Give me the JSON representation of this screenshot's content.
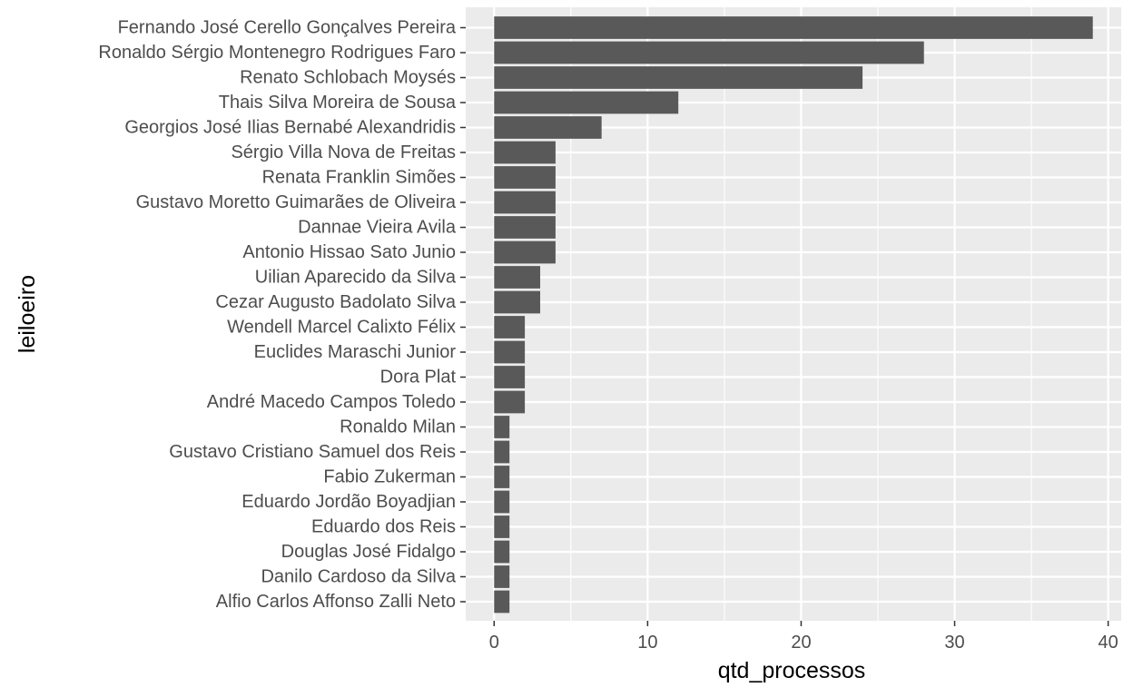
{
  "chart_data": {
    "type": "bar",
    "orientation": "horizontal",
    "xlabel": "qtd_processos",
    "ylabel": "leiloeiro",
    "xlim": [
      -1.85,
      40.85
    ],
    "x_ticks": [
      0,
      10,
      20,
      30,
      40
    ],
    "grid": true,
    "colors": {
      "panel": "#ebebeb",
      "grid_major": "#ffffff",
      "bar": "#595959",
      "tick_text": "#4d4d4d",
      "title_text": "#000000"
    },
    "categories": [
      "Fernando José Cerello Gonçalves Pereira",
      "Ronaldo Sérgio Montenegro Rodrigues Faro",
      "Renato Schlobach Moysés",
      "Thais Silva Moreira de Sousa",
      "Georgios José Ilias Bernabé Alexandridis",
      "Sérgio Villa Nova de Freitas",
      "Renata Franklin Simões",
      "Gustavo Moretto Guimarães de Oliveira",
      "Dannae Vieira Avila",
      "Antonio Hissao Sato Junio",
      "Uilian Aparecido da Silva",
      "Cezar Augusto Badolato Silva",
      "Wendell Marcel Calixto Félix",
      "Euclides Maraschi Junior",
      "Dora Plat",
      "André Macedo Campos Toledo",
      "Ronaldo Milan",
      "Gustavo Cristiano Samuel dos Reis",
      "Fabio Zukerman",
      "Eduardo Jordão Boyadjian",
      "Eduardo dos Reis",
      "Douglas José Fidalgo",
      "Danilo Cardoso da Silva",
      "Alfio Carlos Affonso Zalli Neto"
    ],
    "values": [
      39,
      28,
      24,
      12,
      7,
      4,
      4,
      4,
      4,
      4,
      3,
      3,
      2,
      2,
      2,
      2,
      1,
      1,
      1,
      1,
      1,
      1,
      1,
      1
    ]
  }
}
